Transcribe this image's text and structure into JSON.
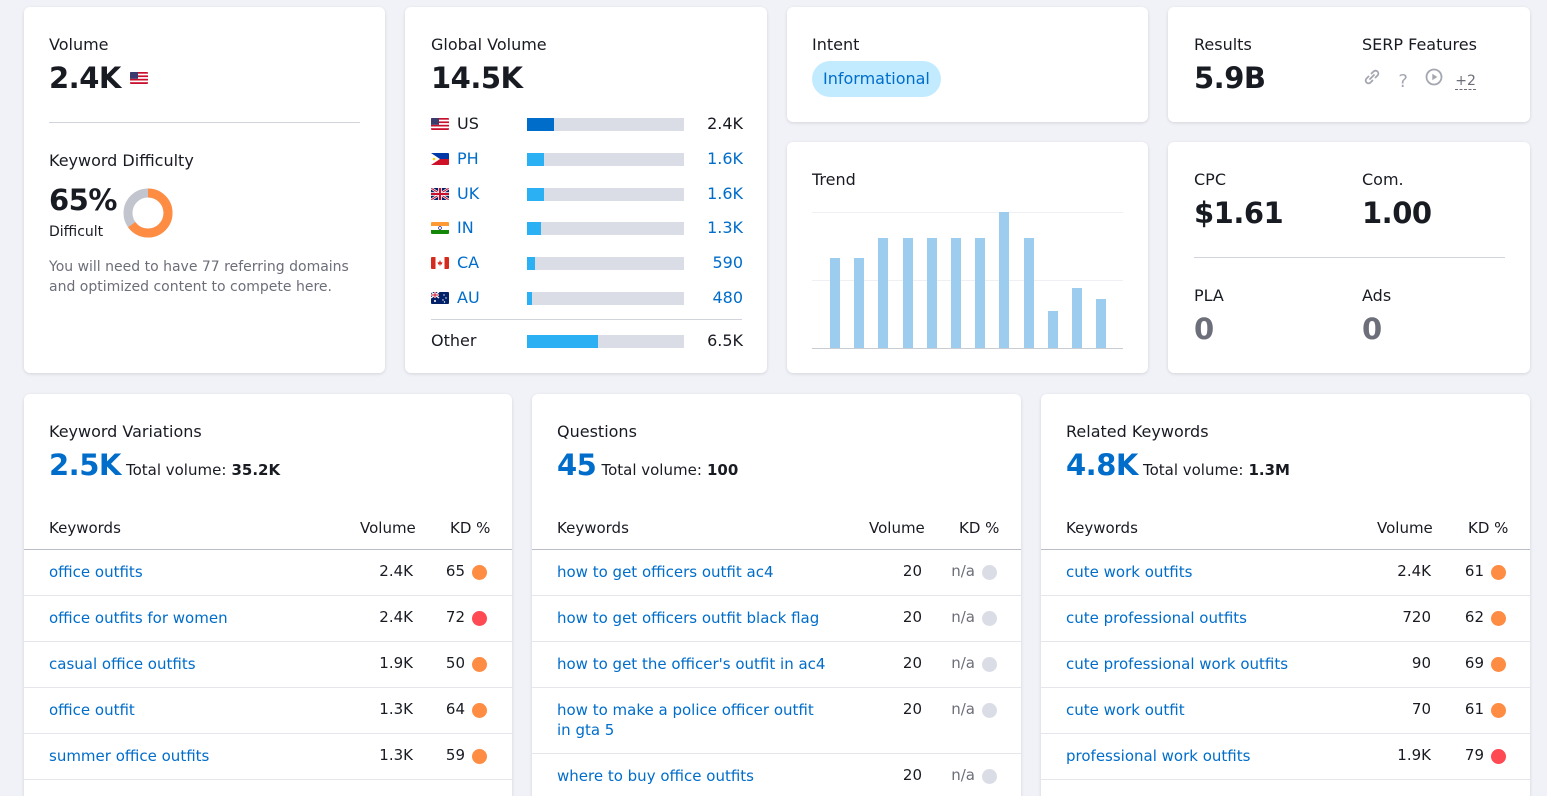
{
  "volume": {
    "label": "Volume",
    "value": "2.4K",
    "flag": "us-flag"
  },
  "kd": {
    "label": "Keyword Difficulty",
    "value": "65%",
    "level": "Difficult",
    "percent": 65,
    "note": "You will need to have 77 referring domains and optimized content to compete here.",
    "color": "#ff8c43"
  },
  "global": {
    "label": "Global Volume",
    "value": "14.5K",
    "countries": [
      {
        "code": "US",
        "value": "2.4K",
        "share": 0.17,
        "flag": "us-flag",
        "linked": false
      },
      {
        "code": "PH",
        "value": "1.6K",
        "share": 0.11,
        "flag": "ph-flag",
        "linked": true
      },
      {
        "code": "UK",
        "value": "1.6K",
        "share": 0.11,
        "flag": "uk-flag",
        "linked": true
      },
      {
        "code": "IN",
        "value": "1.3K",
        "share": 0.09,
        "flag": "in-flag",
        "linked": true
      },
      {
        "code": "CA",
        "value": "590",
        "share": 0.05,
        "flag": "ca-flag",
        "linked": true
      },
      {
        "code": "AU",
        "value": "480",
        "share": 0.03,
        "flag": "au-flag",
        "linked": true
      }
    ],
    "other": {
      "label": "Other",
      "value": "6.5K",
      "share": 0.45
    }
  },
  "intent": {
    "label": "Intent",
    "badge": "Informational"
  },
  "results": {
    "label": "Results",
    "value": "5.9B"
  },
  "serp": {
    "label": "SERP Features",
    "icons": [
      "link-icon",
      "question-icon",
      "video-icon"
    ],
    "more": "+2"
  },
  "trend": {
    "label": "Trend",
    "values": [
      0.66,
      0.66,
      0.81,
      0.81,
      0.81,
      0.81,
      0.81,
      1.0,
      0.81,
      0.27,
      0.44,
      0.36
    ]
  },
  "cpc": {
    "label": "CPC",
    "value": "$1.61"
  },
  "com": {
    "label": "Com.",
    "value": "1.00"
  },
  "pla": {
    "label": "PLA",
    "value": "0"
  },
  "ads": {
    "label": "Ads",
    "value": "0"
  },
  "variations": {
    "title": "Keyword Variations",
    "count": "2.5K",
    "total_label": "Total volume:",
    "total": "35.2K",
    "headers": {
      "keywords": "Keywords",
      "volume": "Volume",
      "kd": "KD %"
    },
    "rows": [
      {
        "kw": "office outfits",
        "vol": "2.4K",
        "kd": "65",
        "color": "orange"
      },
      {
        "kw": "office outfits for women",
        "vol": "2.4K",
        "kd": "72",
        "color": "red"
      },
      {
        "kw": "casual office outfits",
        "vol": "1.9K",
        "kd": "50",
        "color": "orange"
      },
      {
        "kw": "office outfit",
        "vol": "1.3K",
        "kd": "64",
        "color": "orange"
      },
      {
        "kw": "summer office outfits",
        "vol": "1.3K",
        "kd": "59",
        "color": "orange"
      }
    ]
  },
  "questions": {
    "title": "Questions",
    "count": "45",
    "total_label": "Total volume:",
    "total": "100",
    "headers": {
      "keywords": "Keywords",
      "volume": "Volume",
      "kd": "KD %"
    },
    "rows": [
      {
        "kw": "how to get officers outfit ac4",
        "vol": "20",
        "kd": "n/a",
        "color": "gray"
      },
      {
        "kw": "how to get officers outfit black flag",
        "vol": "20",
        "kd": "n/a",
        "color": "gray"
      },
      {
        "kw": "how to get the officer's outfit in ac4",
        "vol": "20",
        "kd": "n/a",
        "color": "gray"
      },
      {
        "kw": "how to make a police officer outfit in gta 5",
        "vol": "20",
        "kd": "n/a",
        "color": "gray"
      },
      {
        "kw": "where to buy office outfits",
        "vol": "20",
        "kd": "n/a",
        "color": "gray"
      }
    ]
  },
  "related": {
    "title": "Related Keywords",
    "count": "4.8K",
    "total_label": "Total volume:",
    "total": "1.3M",
    "headers": {
      "keywords": "Keywords",
      "volume": "Volume",
      "kd": "KD %"
    },
    "rows": [
      {
        "kw": "cute work outfits",
        "vol": "2.4K",
        "kd": "61",
        "color": "orange"
      },
      {
        "kw": "cute professional outfits",
        "vol": "720",
        "kd": "62",
        "color": "orange"
      },
      {
        "kw": "cute professional work outfits",
        "vol": "90",
        "kd": "69",
        "color": "orange"
      },
      {
        "kw": "cute work outfit",
        "vol": "70",
        "kd": "61",
        "color": "orange"
      },
      {
        "kw": "professional work outfits",
        "vol": "1.9K",
        "kd": "79",
        "color": "red"
      }
    ]
  }
}
